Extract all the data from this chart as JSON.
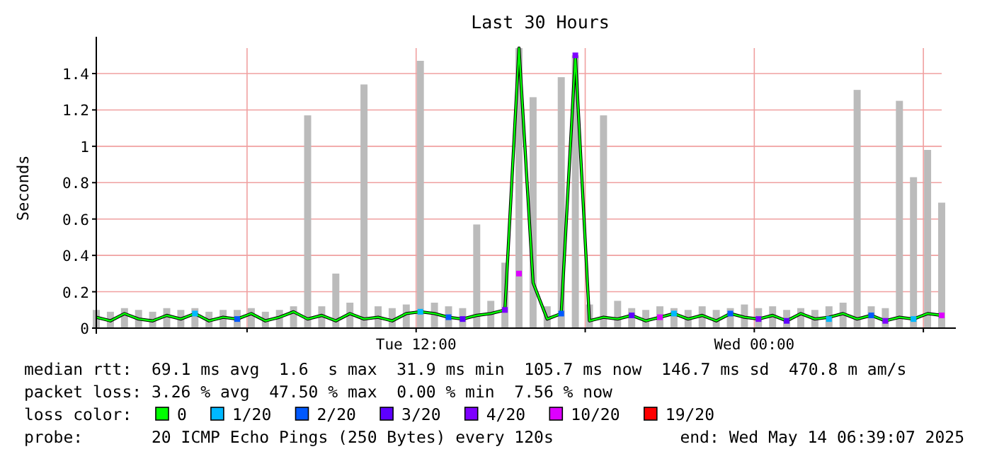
{
  "chart_data": {
    "type": "line",
    "title": "Last 30 Hours",
    "ylabel": "Seconds",
    "x": [
      "2025-05-13T00:39",
      "2025-05-13T01:09",
      "2025-05-13T01:39",
      "2025-05-13T02:09",
      "2025-05-13T02:39",
      "2025-05-13T03:09",
      "2025-05-13T03:39",
      "2025-05-13T04:09",
      "2025-05-13T04:39",
      "2025-05-13T05:09",
      "2025-05-13T05:39",
      "2025-05-13T06:09",
      "2025-05-13T06:39",
      "2025-05-13T07:09",
      "2025-05-13T07:39",
      "2025-05-13T08:09",
      "2025-05-13T08:39",
      "2025-05-13T09:09",
      "2025-05-13T09:39",
      "2025-05-13T10:09",
      "2025-05-13T10:39",
      "2025-05-13T11:09",
      "2025-05-13T11:39",
      "2025-05-13T12:09",
      "2025-05-13T12:39",
      "2025-05-13T13:09",
      "2025-05-13T13:39",
      "2025-05-13T14:09",
      "2025-05-13T14:39",
      "2025-05-13T15:09",
      "2025-05-13T15:39",
      "2025-05-13T16:09",
      "2025-05-13T16:39",
      "2025-05-13T17:09",
      "2025-05-13T17:39",
      "2025-05-13T18:09",
      "2025-05-13T18:39",
      "2025-05-13T19:09",
      "2025-05-13T19:39",
      "2025-05-13T20:09",
      "2025-05-13T20:39",
      "2025-05-13T21:09",
      "2025-05-13T21:39",
      "2025-05-13T22:09",
      "2025-05-13T22:39",
      "2025-05-13T23:09",
      "2025-05-13T23:39",
      "2025-05-14T00:09",
      "2025-05-14T00:39",
      "2025-05-14T01:09",
      "2025-05-14T01:39",
      "2025-05-14T02:09",
      "2025-05-14T02:39",
      "2025-05-14T03:09",
      "2025-05-14T03:39",
      "2025-05-14T04:09",
      "2025-05-14T04:39",
      "2025-05-14T05:09",
      "2025-05-14T05:39",
      "2025-05-14T06:09",
      "2025-05-14T06:39"
    ],
    "series": [
      {
        "type": "bar",
        "color": "#bbbbbb",
        "values": [
          0.1,
          0.09,
          0.11,
          0.1,
          0.09,
          0.11,
          0.1,
          0.11,
          0.09,
          0.1,
          0.1,
          0.11,
          0.09,
          0.1,
          0.12,
          1.17,
          0.12,
          0.3,
          0.14,
          1.34,
          0.12,
          0.11,
          0.13,
          1.47,
          0.14,
          0.12,
          0.11,
          0.57,
          0.15,
          0.36,
          1.54,
          1.27,
          0.12,
          1.38,
          1.5,
          0.13,
          1.17,
          0.15,
          0.11,
          0.1,
          0.12,
          0.11,
          0.1,
          0.12,
          0.1,
          0.11,
          0.13,
          0.11,
          0.12,
          0.1,
          0.11,
          0.1,
          0.12,
          0.14,
          1.31,
          0.12,
          0.11,
          1.25,
          0.83,
          0.98,
          0.69
        ]
      },
      {
        "name": "0",
        "color": "#00ff00",
        "values": [
          0.06,
          0.04,
          0.08,
          0.05,
          0.04,
          0.07,
          0.05,
          0.08,
          0.04,
          0.06,
          0.05,
          0.08,
          0.04,
          0.06,
          0.09,
          0.05,
          0.07,
          0.04,
          0.08,
          0.05,
          0.06,
          0.04,
          0.08,
          0.09,
          0.08,
          0.06,
          0.05,
          0.07,
          0.08,
          0.1,
          1.54,
          0.25,
          0.05,
          0.08,
          1.5,
          0.04,
          0.06,
          0.05,
          0.07,
          0.04,
          0.06,
          0.08,
          0.05,
          0.07,
          0.04,
          0.08,
          0.06,
          0.05,
          0.07,
          0.04,
          0.08,
          0.05,
          0.06,
          0.08,
          0.05,
          0.07,
          0.04,
          0.06,
          0.05,
          0.08,
          0.07
        ]
      },
      {
        "type": "scatter",
        "name": "1/20",
        "color": "#00b8ff",
        "x": [
          "2025-05-13T04:09",
          "2025-05-13T12:09",
          "2025-05-13T21:09",
          "2025-05-14T02:39",
          "2025-05-14T05:39"
        ],
        "values": [
          0.08,
          0.09,
          0.08,
          0.05,
          0.05
        ],
        "marker": "square"
      },
      {
        "type": "scatter",
        "name": "2/20",
        "color": "#0059ff",
        "x": [
          "2025-05-13T05:39",
          "2025-05-13T13:09",
          "2025-05-13T17:09",
          "2025-05-13T23:09",
          "2025-05-14T04:09"
        ],
        "values": [
          0.05,
          0.06,
          0.08,
          0.08,
          0.07
        ],
        "marker": "square"
      },
      {
        "type": "scatter",
        "name": "3/20",
        "color": "#5e00ff",
        "x": [
          "2025-05-13T13:39",
          "2025-05-13T19:39",
          "2025-05-14T01:09"
        ],
        "values": [
          0.05,
          0.07,
          0.04
        ],
        "marker": "square"
      },
      {
        "type": "scatter",
        "name": "4/20",
        "color": "#7e00ff",
        "x": [
          "2025-05-13T15:09",
          "2025-05-13T17:39",
          "2025-05-14T00:09",
          "2025-05-14T04:39"
        ],
        "values": [
          0.1,
          1.5,
          0.05,
          0.04
        ],
        "marker": "square"
      },
      {
        "type": "scatter",
        "name": "10/20",
        "color": "#dd00ff",
        "x": [
          "2025-05-13T15:39",
          "2025-05-13T20:39",
          "2025-05-14T06:39"
        ],
        "values": [
          0.3,
          0.06,
          0.07
        ],
        "marker": "square"
      },
      {
        "type": "scatter",
        "name": "19/20",
        "color": "#ff0000",
        "values": [
          null,
          null,
          null,
          null,
          null,
          null,
          null,
          null,
          null,
          null,
          null,
          null,
          null,
          null,
          null,
          null,
          null,
          null,
          null,
          null,
          null,
          null,
          null,
          null,
          null,
          null,
          null,
          null,
          null,
          null,
          null,
          null,
          null,
          null,
          null,
          null,
          null,
          null,
          null,
          null,
          null,
          null,
          null,
          null,
          null,
          null,
          null,
          null,
          null,
          null,
          null,
          null,
          null,
          null,
          null,
          null,
          null,
          null,
          null,
          null,
          null
        ]
      }
    ],
    "xlim": [
      "2025-05-13T00:39",
      "2025-05-14T06:39"
    ],
    "xticks": [
      {
        "value": "2025-05-13T06:00",
        "label": null
      },
      {
        "value": "2025-05-13T12:00",
        "label": "Tue 12:00"
      },
      {
        "value": "2025-05-13T18:00",
        "label": null
      },
      {
        "value": "2025-05-14T00:00",
        "label": "Wed 00:00"
      },
      {
        "value": "2025-05-14T06:00",
        "label": null
      }
    ],
    "ylim": [
      0,
      1.54
    ],
    "yticks": [
      0,
      0.2,
      0.4,
      0.6,
      0.8,
      1.0,
      1.2,
      1.4
    ],
    "grid": true,
    "legend": "bottom",
    "legend_title": "loss color:",
    "annotations": [
      "median rtt:  69.1 ms avg  1.6  s max  31.9 ms min  105.7 ms now  146.7 ms sd  470.8 m am/s",
      "packet loss: 3.26 % avg  47.50 % max  0.00 % min  7.56 % now",
      "probe:       20 ICMP Echo Pings (250 Bytes) every 120s",
      "end: Wed May 14 06:39:07 2025"
    ]
  }
}
